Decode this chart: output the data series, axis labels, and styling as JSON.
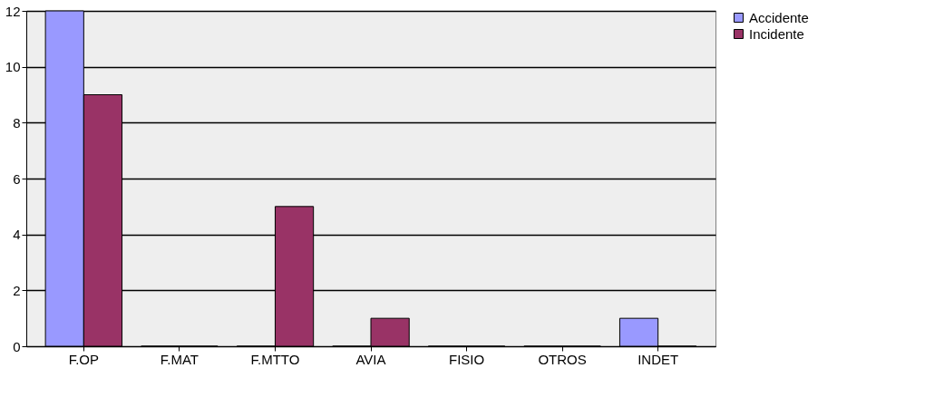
{
  "chart_data": {
    "type": "bar",
    "categories": [
      "F.OP",
      "F.MAT",
      "F.MTTO",
      "AVIA",
      "FISIO",
      "OTROS",
      "INDET"
    ],
    "series": [
      {
        "name": "Accidente",
        "color": "#9999ff",
        "values": [
          12,
          0,
          0,
          0,
          0,
          0,
          1
        ]
      },
      {
        "name": "Incidente",
        "color": "#993366",
        "values": [
          9,
          0,
          5,
          1,
          0,
          0,
          0
        ]
      }
    ],
    "ylim": [
      0,
      12
    ],
    "yticks": [
      0,
      2,
      4,
      6,
      8,
      10,
      12
    ],
    "grid": "y",
    "legend": "right"
  }
}
